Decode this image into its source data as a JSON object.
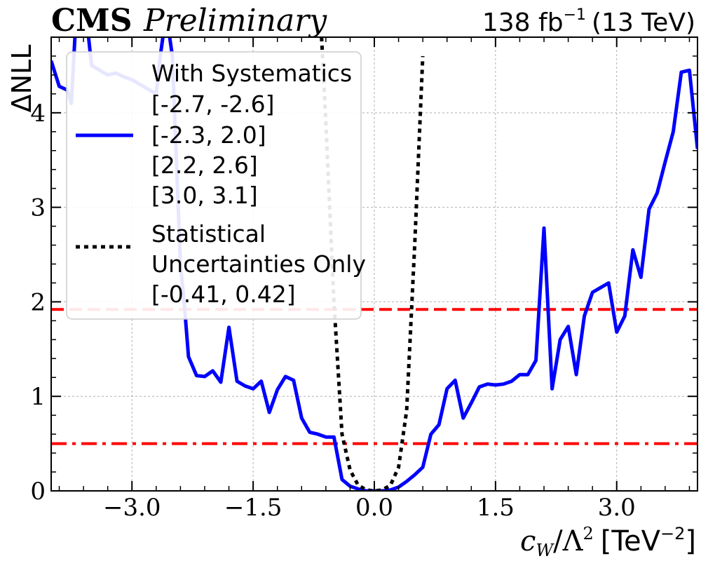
{
  "header": {
    "experiment": "CMS",
    "status": "Preliminary",
    "lumi_value": "138 fb",
    "lumi_exponent": "−1",
    "energy": "(13 TeV)"
  },
  "chart_data": {
    "type": "line",
    "xlabel_base": "c",
    "xlabel_sub": "W",
    "xlabel_div": "/Λ",
    "xlabel_pow": "2",
    "xlabel_unit": "[TeV",
    "xlabel_unit_exp": "−2",
    "xlabel_unit_close": "]",
    "ylabel": "ΔNLL",
    "xlim": [
      -4.0,
      4.0
    ],
    "ylim": [
      0,
      4.8
    ],
    "xticks": [
      -3.0,
      -1.5,
      0.0,
      1.5,
      3.0
    ],
    "xtick_labels": [
      "−3.0",
      "−1.5",
      "0.0",
      "1.5",
      "3.0"
    ],
    "yticks": [
      0,
      1,
      2,
      3,
      4
    ],
    "ytick_labels": [
      "0",
      "1",
      "2",
      "3",
      "4"
    ],
    "grid": true,
    "legend_position": "upper-left",
    "thresholds": [
      {
        "y": 1.92,
        "style": "dashed",
        "color": "#ff0000"
      },
      {
        "y": 0.5,
        "style": "dashdot",
        "color": "#ff0000"
      }
    ],
    "series": [
      {
        "name": "With Systematics",
        "color": "#0000ff",
        "style": "solid",
        "intervals": [
          "[-2.7, -2.6]",
          "[-2.3, 2.0]",
          "[2.2, 2.6]",
          "[3.0, 3.1]"
        ],
        "x": [
          -4.0,
          -3.9,
          -3.8,
          -3.75,
          -3.7,
          -3.6,
          -3.55,
          -3.5,
          -3.4,
          -3.3,
          -3.2,
          -3.1,
          -3.0,
          -2.9,
          -2.8,
          -2.7,
          -2.65,
          -2.6,
          -2.55,
          -2.5,
          -2.45,
          -2.4,
          -2.35,
          -2.3,
          -2.2,
          -2.1,
          -2.0,
          -1.9,
          -1.8,
          -1.7,
          -1.6,
          -1.5,
          -1.4,
          -1.3,
          -1.2,
          -1.1,
          -1.0,
          -0.9,
          -0.8,
          -0.7,
          -0.6,
          -0.5,
          -0.4,
          -0.3,
          -0.2,
          -0.1,
          0.0,
          0.1,
          0.2,
          0.3,
          0.4,
          0.5,
          0.6,
          0.7,
          0.8,
          0.9,
          1.0,
          1.1,
          1.2,
          1.3,
          1.4,
          1.5,
          1.6,
          1.7,
          1.8,
          1.9,
          2.0,
          2.1,
          2.2,
          2.3,
          2.4,
          2.5,
          2.6,
          2.7,
          2.8,
          2.9,
          3.0,
          3.1,
          3.2,
          3.3,
          3.4,
          3.5,
          3.6,
          3.7,
          3.8,
          3.9,
          4.0
        ],
        "y": [
          4.55,
          4.28,
          4.24,
          4.1,
          4.9,
          4.9,
          4.9,
          4.5,
          4.45,
          4.4,
          4.42,
          4.38,
          4.35,
          4.3,
          4.25,
          4.2,
          4.6,
          4.9,
          4.9,
          4.6,
          3.5,
          2.4,
          1.95,
          1.42,
          1.22,
          1.21,
          1.27,
          1.15,
          1.73,
          1.16,
          1.11,
          1.08,
          1.16,
          0.83,
          1.07,
          1.21,
          1.17,
          0.77,
          0.62,
          0.6,
          0.57,
          0.57,
          0.12,
          0.05,
          0.02,
          0.0,
          0.0,
          0.0,
          0.01,
          0.04,
          0.1,
          0.17,
          0.25,
          0.6,
          0.7,
          1.08,
          1.17,
          0.77,
          0.93,
          1.1,
          1.13,
          1.12,
          1.13,
          1.16,
          1.23,
          1.23,
          1.38,
          2.78,
          1.08,
          1.6,
          1.74,
          1.23,
          1.85,
          2.1,
          2.15,
          2.2,
          1.68,
          1.85,
          2.55,
          2.26,
          2.98,
          3.15,
          3.48,
          3.8,
          4.43,
          4.45,
          3.62
        ]
      },
      {
        "name": "Statistical Uncertainties Only",
        "name_line1": "Statistical",
        "name_line2": "Uncertainties Only",
        "color": "#000000",
        "style": "dotted",
        "intervals": [
          "[-0.41, 0.42]"
        ],
        "x": [
          -0.7,
          -0.6,
          -0.5,
          -0.4,
          -0.3,
          -0.2,
          -0.1,
          0.0,
          0.1,
          0.2,
          0.3,
          0.4,
          0.5,
          0.6
        ],
        "y": [
          5.6,
          3.9,
          2.0,
          0.6,
          0.22,
          0.06,
          0.01,
          0.0,
          0.01,
          0.06,
          0.25,
          0.85,
          2.6,
          4.6
        ]
      }
    ]
  }
}
